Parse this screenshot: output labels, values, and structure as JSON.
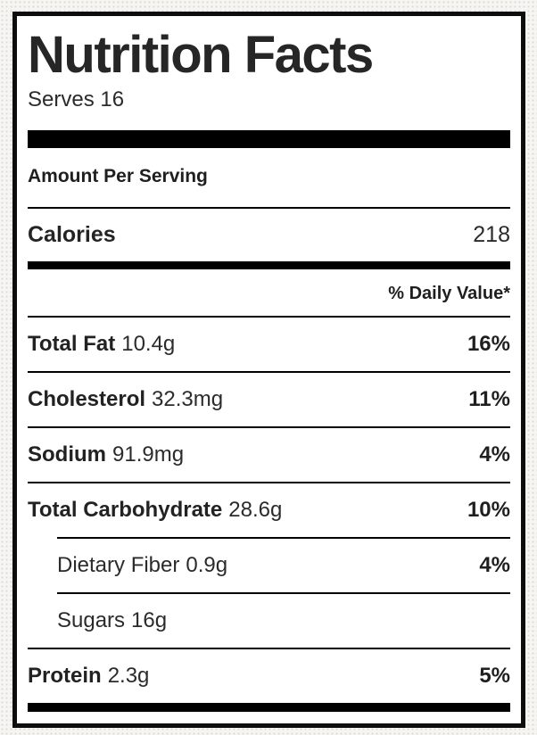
{
  "label": {
    "title": "Nutrition Facts",
    "serving_info": "Serves 16",
    "amount_header": "Amount Per Serving",
    "calories": {
      "name": "Calories",
      "value": "218"
    },
    "daily_value_header": "% Daily Value*",
    "rows": [
      {
        "name": "Total Fat",
        "amount": "10.4g",
        "dv": "16%"
      },
      {
        "name": "Cholesterol",
        "amount": "32.3mg",
        "dv": "11%"
      },
      {
        "name": "Sodium",
        "amount": "91.9mg",
        "dv": "4%"
      },
      {
        "name": "Total Carbohydrate",
        "amount": "28.6g",
        "dv": "10%"
      },
      {
        "name": "Dietary Fiber",
        "amount": "0.9g",
        "dv": "4%"
      },
      {
        "name": "Sugars",
        "amount": "16g",
        "dv": ""
      },
      {
        "name": "Protein",
        "amount": "2.3g",
        "dv": "5%"
      }
    ],
    "colors": {
      "text": "#242424",
      "rule": "#000000",
      "frame": "#0d0d0d",
      "label_background": "#ffffff",
      "page_background": "#f6f5f2"
    }
  }
}
